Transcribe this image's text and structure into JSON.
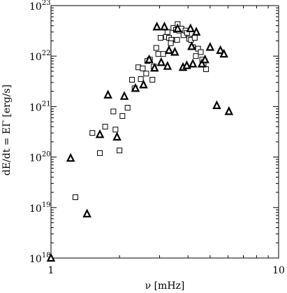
{
  "chart_data": {
    "type": "scatter",
    "xscale": "log",
    "yscale": "log",
    "xlim": [
      1,
      10
    ],
    "ylim": [
      1e+18,
      1e+23
    ],
    "xlabel": "ν [mHz]",
    "ylabel": "dE/dt = EΓ [erg/s]",
    "x_ticks": [
      {
        "value": 1,
        "label": "1"
      },
      {
        "value": 10,
        "label": "10"
      }
    ],
    "y_ticks": [
      {
        "value": 1e+18,
        "base": "10",
        "exp": "18"
      },
      {
        "value": 1e+19,
        "base": "10",
        "exp": "19"
      },
      {
        "value": 1e+20,
        "base": "10",
        "exp": "20"
      },
      {
        "value": 1e+21,
        "base": "10",
        "exp": "21"
      },
      {
        "value": 1e+22,
        "base": "10",
        "exp": "22"
      },
      {
        "value": 1e+23,
        "base": "10",
        "exp": "23"
      }
    ],
    "grid": false,
    "series": [
      {
        "marker": "square",
        "x": [
          1.28,
          1.52,
          1.64,
          1.73,
          1.88,
          1.92,
          2.0,
          2.06,
          2.17,
          2.27,
          2.33,
          2.42,
          2.53,
          2.62,
          2.65,
          2.72,
          2.79,
          2.83,
          2.9,
          2.96,
          3.03,
          3.11,
          3.2,
          3.25,
          3.3,
          3.38,
          3.45,
          3.54,
          3.6,
          3.66,
          3.74,
          3.82,
          3.9,
          3.96,
          4.05,
          4.12,
          4.2,
          4.28,
          4.33,
          4.43,
          4.55,
          4.62,
          4.68,
          4.8,
          3.36,
          3.58,
          2.48
        ],
        "y": [
          1.6e+19,
          3e+20,
          1.2e+20,
          4e+20,
          8e+20,
          3.5e+20,
          1.35e+20,
          6.5e+20,
          9.5e+20,
          3.4e+21,
          2.3e+21,
          6e+21,
          5.7e+21,
          4.5e+21,
          8e+21,
          8.5e+21,
          3.4e+21,
          6.2e+21,
          1.45e+22,
          1.1e+22,
          2.3e+22,
          1.1e+22,
          2.4e+22,
          3e+22,
          2.3e+22,
          2.1e+22,
          3.6e+22,
          3.3e+22,
          4.3e+22,
          3.2e+22,
          3.5e+22,
          2.6e+22,
          3.2e+22,
          2.9e+22,
          2.2e+22,
          2.1e+22,
          1.5e+22,
          2.3e+22,
          1e+22,
          1.4e+22,
          1.2e+22,
          8.5e+21,
          6.8e+21,
          5.5e+21,
          1.8e+22,
          2.1e+22,
          3.5e+21
        ]
      },
      {
        "marker": "triangle",
        "x": [
          1.0,
          1.22,
          1.44,
          1.64,
          1.78,
          1.95,
          2.1,
          2.35,
          2.55,
          2.7,
          2.92,
          3.05,
          3.15,
          3.3,
          3.5,
          3.6,
          3.8,
          3.95,
          4.1,
          4.2,
          4.35,
          4.6,
          4.75,
          5.0,
          5.35,
          5.55,
          5.75,
          6.05,
          4.15,
          3.25,
          2.85
        ],
        "y": [
          1e+18,
          9.5e+19,
          7.5e+18,
          2.8e+20,
          1.7e+21,
          2.5e+20,
          1.6e+21,
          2.3e+21,
          2.7e+21,
          8.5e+21,
          3.8e+22,
          7.5e+21,
          3.8e+22,
          1.3e+22,
          1.2e+22,
          3.5e+22,
          6e+21,
          6.5e+21,
          3.5e+22,
          7e+21,
          3e+22,
          7e+21,
          8.5e+21,
          1.5e+22,
          1.05e+21,
          1.3e+22,
          1.1e+22,
          8e+20,
          1.55e+22,
          6.3e+21,
          5.8e+21
        ]
      }
    ]
  }
}
